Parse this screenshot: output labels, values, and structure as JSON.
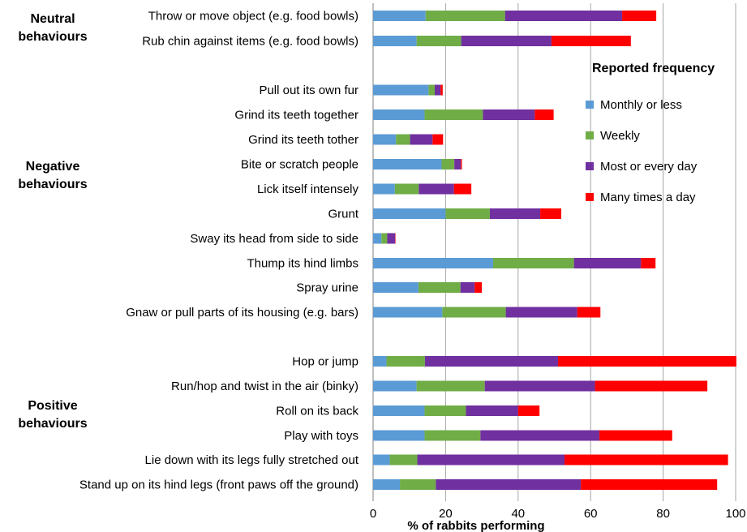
{
  "group_labels": [
    {
      "line1": "Neutral",
      "line2": "behaviours"
    },
    {
      "line1": "Negative",
      "line2": "behaviours"
    },
    {
      "line1": "Positive",
      "line2": "behaviours"
    }
  ],
  "chart_data": {
    "type": "bar",
    "orientation": "horizontal",
    "stacked": true,
    "xlabel": "% of rabbits performing",
    "xlim": [
      0,
      100
    ],
    "xticks": [
      0,
      20,
      40,
      60,
      80,
      100
    ],
    "grid": "vertical",
    "legend_position": "right",
    "legend_title": "Reported frequency",
    "categories": [
      "Throw or move  object (e.g. food bowls)",
      "Rub chin against items (e.g. food bowls)",
      "Pull out its own fur",
      "Grind its teeth together",
      "Grind its teeth tother",
      "Bite or scratch people",
      "Lick itself intensely",
      "Grunt",
      "Sway its head from side to side",
      "Thump its hind limbs",
      "Spray urine",
      "Gnaw or pull parts of its housing (e.g. bars)",
      "Hop or jump",
      "Run/hop and twist in the air (binky)",
      "Roll on its back",
      "Play with toys",
      "Lie down with its legs fully stretched out",
      "Stand up on its hind legs (front paws off the ground)"
    ],
    "series": [
      {
        "name": "Monthly or less",
        "color": "#5b9bd5",
        "values": [
          14.5,
          12,
          15.3,
          14.2,
          6.3,
          18.9,
          6,
          20,
          2.3,
          33.1,
          12.5,
          19.1,
          3.7,
          12,
          14.2,
          14.2,
          4.6,
          7.4
        ]
      },
      {
        "name": "Weekly",
        "color": "#70ad47",
        "values": [
          21.9,
          12.3,
          1.7,
          16.1,
          3.9,
          3.5,
          6.6,
          12.2,
          1.6,
          22.3,
          11.6,
          17.5,
          10.6,
          18.8,
          11.4,
          15.4,
          7.6,
          9.9
        ]
      },
      {
        "name": "Most or every day",
        "color": "#7030a0",
        "values": [
          32.3,
          24.9,
          1.6,
          14.3,
          6.2,
          1.8,
          9.7,
          13.9,
          2.2,
          18.5,
          3.9,
          19.7,
          36.7,
          30.4,
          14.4,
          32.8,
          40.6,
          40
        ]
      },
      {
        "name": "Many times a day",
        "color": "#ff0000",
        "values": [
          9.4,
          21.9,
          0.6,
          5.2,
          2.9,
          0.3,
          4.8,
          5.8,
          0.1,
          4,
          2,
          6.4,
          49.2,
          31,
          5.9,
          20.1,
          45.1,
          37.6
        ]
      }
    ]
  }
}
